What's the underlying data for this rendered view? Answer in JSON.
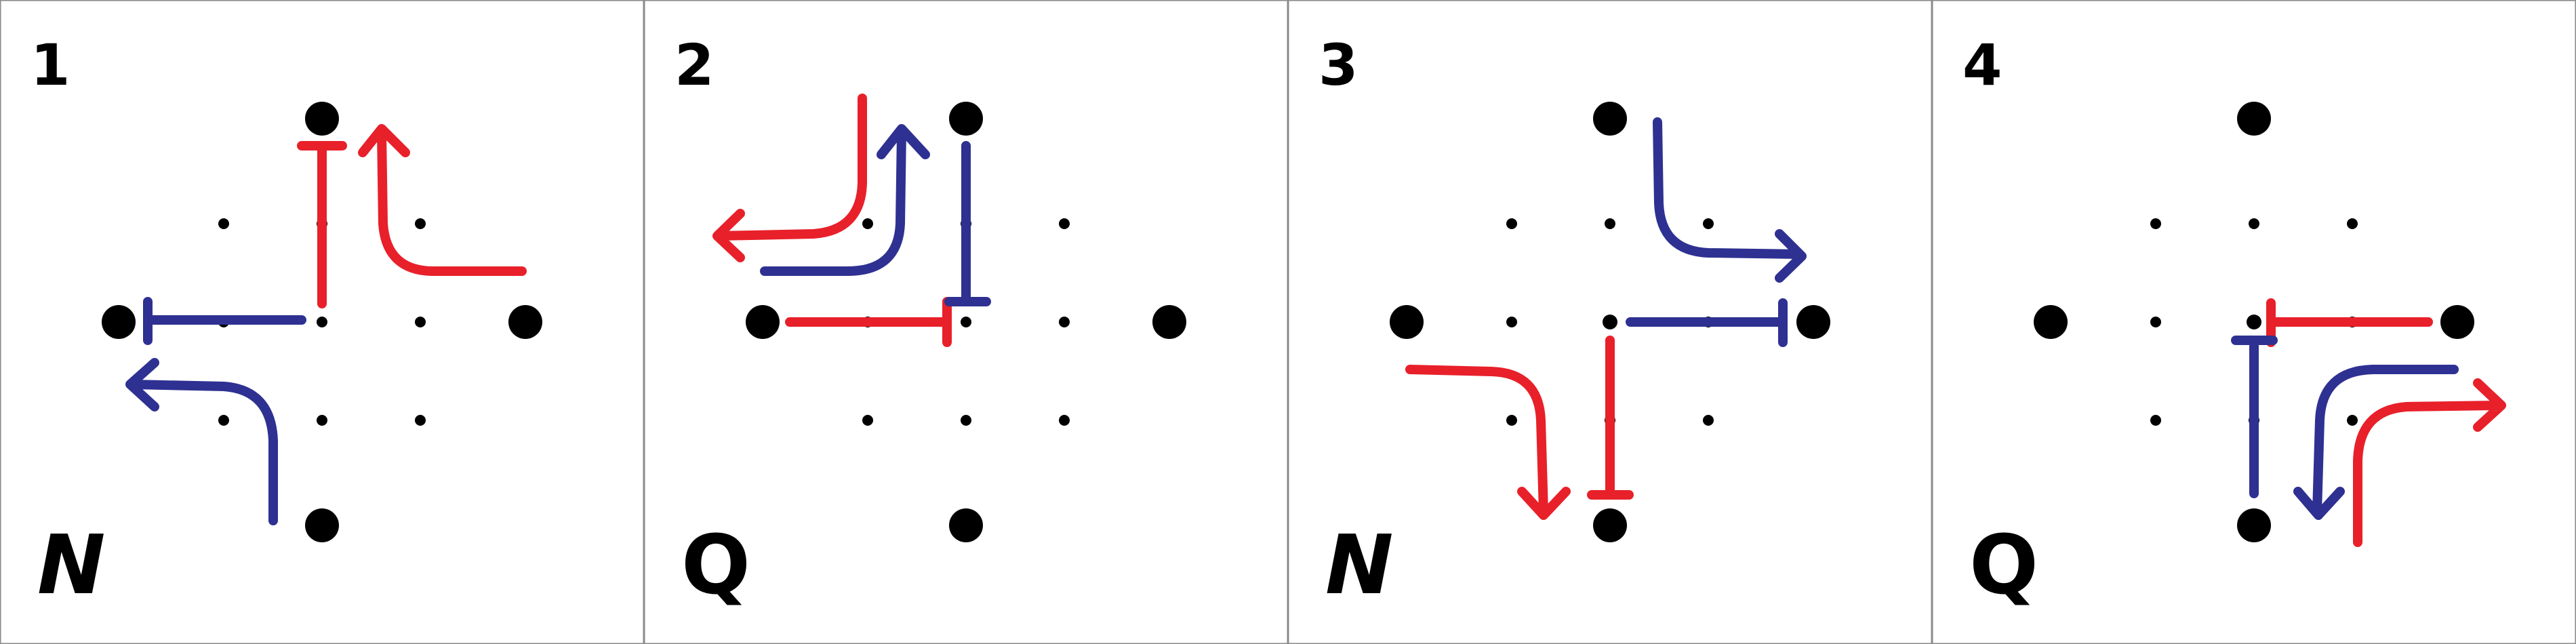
{
  "colors": {
    "red": "#e8202a",
    "blue": "#2e3191",
    "border": "#8a8a8a"
  },
  "panels": [
    {
      "number": "1",
      "letter": "N"
    },
    {
      "number": "2",
      "letter": "Q"
    },
    {
      "number": "3",
      "letter": "N"
    },
    {
      "number": "4",
      "letter": "Q"
    }
  ]
}
